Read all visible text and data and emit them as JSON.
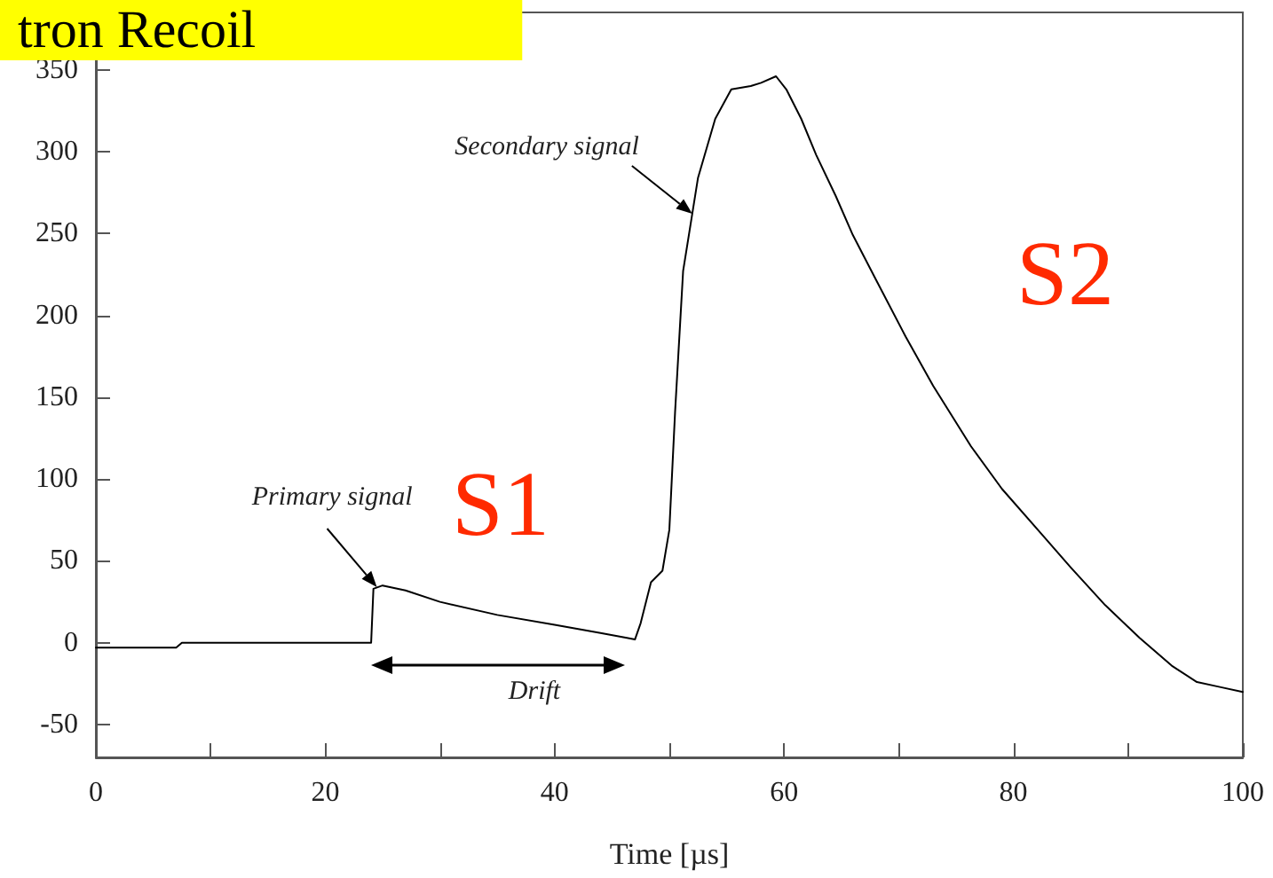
{
  "chart_data": {
    "type": "line",
    "title": "tron Recoil",
    "xlabel": "Time [µs]",
    "xlim": [
      0,
      100
    ],
    "xticks": [
      0,
      {
        "value": 10,
        "label": null
      },
      20,
      {
        "value": 30,
        "label": null
      },
      40,
      {
        "value": 50,
        "label": null
      },
      60,
      {
        "value": 70,
        "label": null
      },
      80,
      {
        "value": 90,
        "label": null
      },
      100
    ],
    "ylim": [
      -70,
      385
    ],
    "yticks": [
      -50,
      0,
      50,
      100,
      150,
      200,
      250,
      300,
      350
    ],
    "grid": false,
    "marker": "none",
    "line_style": "solid",
    "series": [
      {
        "color": "#000000",
        "x": [
          0,
          7,
          7.5,
          10,
          15,
          20,
          24,
          24.2,
          25,
          27,
          30,
          35,
          40,
          44,
          46.3,
          47,
          47.5,
          48.4,
          49.4,
          50,
          50.5,
          51.2,
          52.5,
          54,
          55.4,
          57.1,
          58,
          59.3,
          60.2,
          61.5,
          62.8,
          64.5,
          66,
          68,
          70.6,
          73,
          76.3,
          79,
          82.5,
          85,
          88,
          91,
          93.8,
          96,
          98,
          100
        ],
        "values": [
          -3,
          -3,
          0,
          0,
          0,
          0,
          0,
          33,
          35,
          32,
          25,
          17,
          11,
          6,
          3,
          2,
          12,
          37,
          44,
          69,
          141,
          227,
          284,
          320,
          338,
          340,
          342,
          346,
          338,
          320,
          298,
          273,
          249,
          222,
          187,
          157,
          120,
          94,
          66,
          46,
          23,
          3,
          -14,
          -24,
          -27,
          -30
        ]
      }
    ],
    "annotations": [
      {
        "text": "Primary signal",
        "x": 24.5,
        "y": 34
      },
      {
        "text": "Secondary signal",
        "x": 52,
        "y": 262
      },
      "Drift",
      "S1",
      "S2"
    ]
  }
}
